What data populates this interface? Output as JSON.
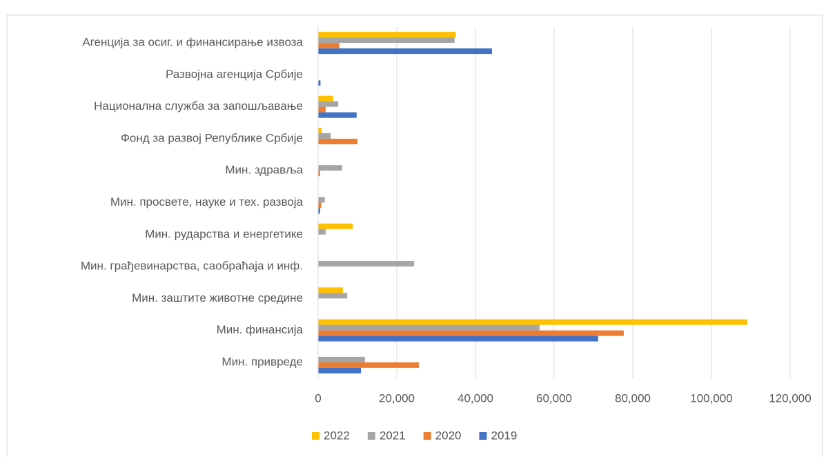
{
  "chart_data": {
    "type": "hbar",
    "categories": [
      "Агенција за осиг. и финансирање извоза",
      "Развојна агенција Србије",
      "Национална служба за запошљавање",
      "Фонд за развој Републике Србије",
      "Мин. здравља",
      "Мин. просвете, науке и тех. развоја",
      "Мин. рударства и енергетике",
      "Мин. грађевинарства, саобраћаја и инф.",
      "Мин. заштите животне средине",
      "Мин. финансија",
      "Мин. привреде"
    ],
    "series": [
      {
        "name": "2022",
        "color": "#ffc000",
        "values": [
          35000,
          0,
          3800,
          900,
          0,
          0,
          8800,
          0,
          6300,
          109100,
          0
        ]
      },
      {
        "name": "2021",
        "color": "#a5a5a5",
        "values": [
          34700,
          0,
          5100,
          3200,
          6100,
          1700,
          1900,
          24400,
          7400,
          56300,
          11900
        ]
      },
      {
        "name": "2020",
        "color": "#ed7d31",
        "values": [
          5400,
          0,
          1900,
          10000,
          500,
          800,
          0,
          0,
          0,
          77700,
          25600
        ]
      },
      {
        "name": "2019",
        "color": "#4472c4",
        "values": [
          44200,
          600,
          9800,
          0,
          0,
          500,
          0,
          0,
          0,
          71200,
          10900
        ]
      }
    ],
    "xlim": [
      0,
      120000
    ],
    "xticks": [
      0,
      {
        "value": 20000,
        "label": "20,000"
      },
      {
        "value": 40000,
        "label": "40,000"
      },
      {
        "value": 60000,
        "label": "60,000"
      },
      {
        "value": 80000,
        "label": "80,000"
      },
      {
        "value": 100000,
        "label": "100,000"
      },
      {
        "value": 120000,
        "label": "120,000"
      }
    ],
    "grid": true,
    "legend": "bottom"
  }
}
